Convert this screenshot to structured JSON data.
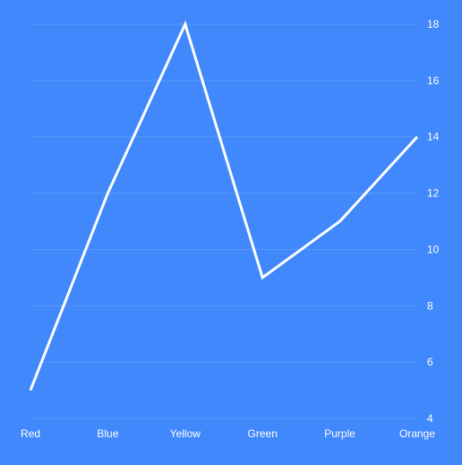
{
  "chart_data": {
    "type": "line",
    "categories": [
      "Red",
      "Blue",
      "Yellow",
      "Green",
      "Purple",
      "Orange"
    ],
    "series": [
      {
        "values": [
          5,
          12,
          18,
          9,
          11,
          14
        ]
      }
    ],
    "ylim": [
      4,
      18
    ],
    "yticks": [
      "4",
      "6",
      "8",
      "10",
      "12",
      "14",
      "16",
      "18"
    ],
    "y_axis_side": "right",
    "grid": true,
    "colors": {
      "background": "#4088fc",
      "line": "#ffffff",
      "grid": "#5a98fb",
      "text": "#ffffff"
    }
  }
}
